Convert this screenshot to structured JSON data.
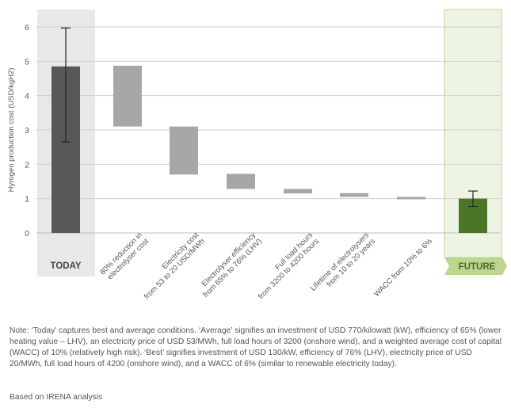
{
  "chart_data": {
    "type": "waterfall",
    "ylabel": "Hyrogen production cost (USD/kgH2)",
    "ylim": [
      0,
      6
    ],
    "yticks": [
      0,
      1,
      2,
      3,
      4,
      5,
      6
    ],
    "grid": true,
    "today": {
      "label": "TODAY",
      "value": 4.85,
      "error_low": 2.65,
      "error_high": 5.97
    },
    "steps": [
      {
        "label": [
          "80% reduction in",
          "electrolyser cost"
        ],
        "from": 4.87,
        "to": 3.1
      },
      {
        "label": [
          "Electricity cost",
          "from 53 to 20 USD/MWh"
        ],
        "from": 3.1,
        "to": 1.7
      },
      {
        "label": [
          "Electrolyser efficiency",
          "from 65% to 76% (LHV)"
        ],
        "from": 1.72,
        "to": 1.28
      },
      {
        "label": [
          "Full load hours",
          "from 3200 to 4200 hours"
        ],
        "from": 1.28,
        "to": 1.15
      },
      {
        "label": [
          "Lifetime of electrolysers",
          "from 10 to 20 years"
        ],
        "from": 1.16,
        "to": 1.05
      },
      {
        "label": [
          "WACC from 10% to 6%"
        ],
        "from": 1.05,
        "to": 1.0
      }
    ],
    "future": {
      "label": "FUTURE",
      "value": 1.0,
      "error_low": 0.77,
      "error_high": 1.22
    },
    "colors": {
      "today_bar": "#57585a",
      "today_band": "#e8e8e8",
      "step_bar": "#a6a8a7",
      "future_bar": "#4a7628",
      "future_band": "#eef4e4",
      "future_tag": "#bcd68f",
      "gridline": "#cfcfcf",
      "text": "#555555"
    }
  },
  "notes": {
    "text": "Note: ‘Today’ captures best and average conditions. ‘Average’ signifies an investment of USD 770/kilowatt (kW), efficiency of 65% (lower heating value – LHV), an electricity price of USD 53/MWh, full load hours of 3200 (onshore wind), and a weighted average cost of capital (WACC) of 10% (relatively high risk). ‘Best’ signifies investment of USD 130/kW, efficiency of 76% (LHV), electricity price of USD 20/MWh, full load hours of 4200 (onshore wind), and a WACC of 6% (similar to renewable electricity today).",
    "source": "Based on IRENA analysis"
  }
}
